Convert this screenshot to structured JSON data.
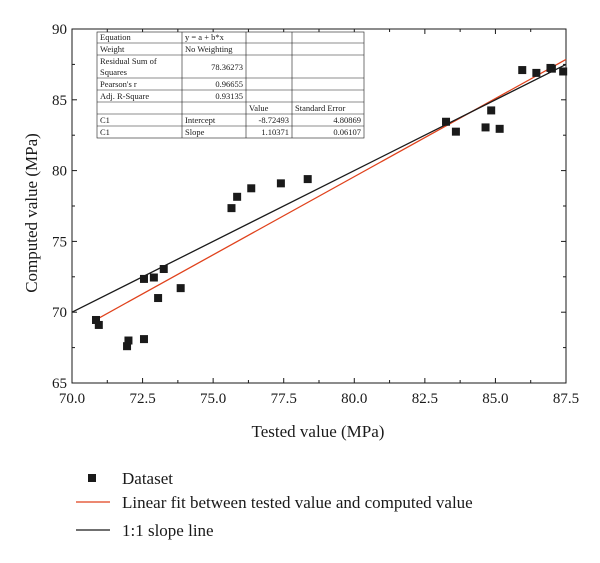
{
  "chart_data": {
    "type": "scatter",
    "xlabel": "Tested value (MPa)",
    "ylabel": "Computed value (MPa)",
    "xlim": [
      70.0,
      87.5
    ],
    "ylim": [
      65,
      90
    ],
    "x_ticks": [
      "70.0",
      "72.5",
      "75.0",
      "77.5",
      "80.0",
      "82.5",
      "85.0",
      "87.5"
    ],
    "y_ticks": [
      "65",
      "70",
      "75",
      "80",
      "85",
      "90"
    ],
    "grid": false,
    "legend_position": "bottom",
    "series": [
      {
        "name": "Dataset",
        "kind": "scatter",
        "color": "#1a1a1a",
        "points": [
          [
            70.85,
            69.45
          ],
          [
            70.95,
            69.1
          ],
          [
            71.95,
            67.6
          ],
          [
            72.0,
            68.0
          ],
          [
            72.55,
            68.1
          ],
          [
            72.55,
            72.35
          ],
          [
            72.9,
            72.45
          ],
          [
            73.05,
            71.0
          ],
          [
            73.25,
            73.05
          ],
          [
            73.85,
            71.7
          ],
          [
            75.65,
            77.35
          ],
          [
            75.85,
            78.15
          ],
          [
            76.35,
            78.75
          ],
          [
            77.4,
            79.1
          ],
          [
            78.35,
            79.4
          ],
          [
            83.25,
            83.45
          ],
          [
            83.6,
            82.75
          ],
          [
            84.65,
            83.05
          ],
          [
            84.85,
            84.25
          ],
          [
            85.15,
            82.95
          ],
          [
            85.95,
            87.1
          ],
          [
            86.45,
            86.9
          ],
          [
            86.95,
            87.25
          ],
          [
            87.0,
            87.2
          ],
          [
            87.4,
            87.0
          ]
        ]
      },
      {
        "name": "Linear fit between tested value and computed value",
        "kind": "line",
        "color": "#e0421c",
        "intercept": -8.72493,
        "slope": 1.10371,
        "x_range": [
          70.9,
          87.5
        ]
      },
      {
        "name": "1:1 slope line",
        "kind": "line",
        "color": "#1a1a1a",
        "intercept": 0,
        "slope": 1,
        "x_range": [
          70.0,
          87.5
        ]
      }
    ],
    "fit_table": {
      "rows": [
        [
          "Equation",
          "y = a + b*x",
          "",
          ""
        ],
        [
          "Weight",
          "No Weighting",
          "",
          ""
        ],
        [
          "Residual Sum of Squares",
          "78.36273",
          "",
          ""
        ],
        [
          "Pearson's r",
          "0.96655",
          "",
          ""
        ],
        [
          "Adj. R-Square",
          "0.93135",
          "",
          ""
        ],
        [
          "",
          "",
          "Value",
          "Standard Error"
        ],
        [
          "C1",
          "Intercept",
          "-8.72493",
          "4.80869"
        ],
        [
          "C1",
          "Slope",
          "1.10371",
          "0.06107"
        ]
      ]
    }
  }
}
